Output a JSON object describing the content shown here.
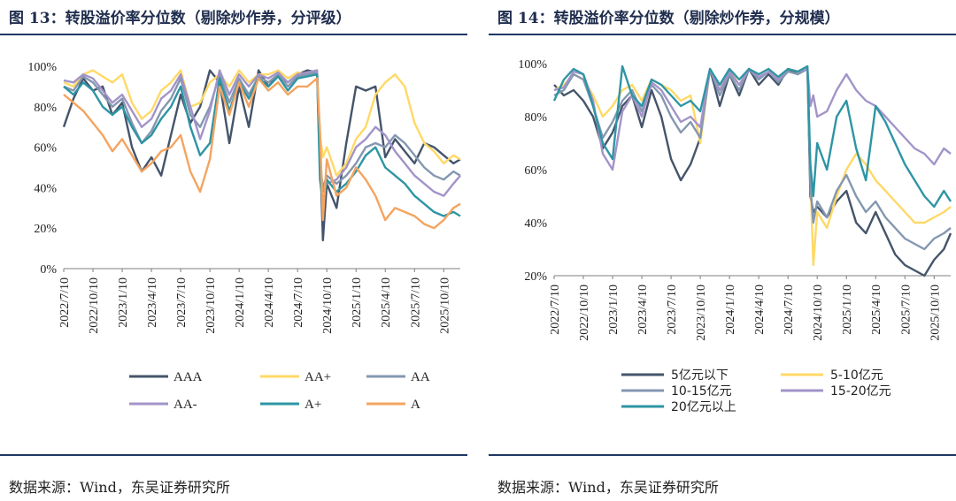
{
  "figures": [
    {
      "title": "图 13：转股溢价率分位数（剔除炒作券，分评级）",
      "source": "数据来源：Wind，东吴证券研究所"
    },
    {
      "title": "图 14：转股溢价率分位数（剔除炒作券，分规模）",
      "source": "数据来源：Wind，东吴证券研究所"
    }
  ],
  "chart_data": [
    {
      "type": "line",
      "title": "转股溢价率分位数（剔除炒作券，分评级）",
      "xlabel": "",
      "ylabel": "",
      "ylim": [
        0,
        100
      ],
      "y_ticks": [
        "0%",
        "20%",
        "40%",
        "60%",
        "80%",
        "100%"
      ],
      "x_ticks": [
        "2022/7/10",
        "2022/10/10",
        "2023/1/10",
        "2023/4/10",
        "2023/7/10",
        "2023/10/10",
        "2024/1/10",
        "2024/4/10",
        "2024/7/10",
        "2024/10/10",
        "2025/1/10",
        "2025/4/10",
        "2025/7/10",
        "2025/10/10"
      ],
      "x_tick_pos": [
        0,
        3,
        6,
        9,
        12,
        15,
        18,
        21,
        24,
        27,
        30,
        33,
        36,
        39
      ],
      "x_range": [
        0,
        40.7
      ],
      "legend": "bottom",
      "series": [
        {
          "name": "AAA",
          "color": "#44546a",
          "x": [
            0,
            1,
            2,
            3,
            4,
            5,
            6,
            7,
            8,
            9,
            10,
            11,
            12,
            13,
            14,
            15,
            16,
            17,
            18,
            19,
            20,
            21,
            22,
            23,
            24,
            25,
            26,
            26.3,
            26.6,
            27,
            28,
            29,
            30,
            31,
            32,
            33,
            34,
            35,
            36,
            37,
            38,
            39,
            40,
            40.7
          ],
          "values": [
            70,
            84,
            94,
            88,
            90,
            76,
            82,
            60,
            48,
            55,
            46,
            66,
            86,
            72,
            80,
            98,
            92,
            62,
            90,
            70,
            98,
            90,
            96,
            92,
            96,
            98,
            97,
            60,
            14,
            42,
            30,
            62,
            90,
            88,
            90,
            55,
            64,
            58,
            52,
            62,
            60,
            56,
            52,
            54
          ]
        },
        {
          "name": "AA+",
          "color": "#ffd966",
          "x": [
            0,
            1,
            2,
            3,
            4,
            5,
            6,
            7,
            8,
            9,
            10,
            11,
            12,
            13,
            14,
            15,
            16,
            17,
            18,
            19,
            20,
            21,
            22,
            23,
            24,
            25,
            26,
            26.3,
            26.6,
            27,
            28,
            29,
            30,
            31,
            32,
            33,
            34,
            35,
            36,
            37,
            38,
            39,
            40,
            40.7
          ],
          "values": [
            92,
            90,
            96,
            98,
            95,
            92,
            96,
            82,
            74,
            78,
            88,
            92,
            98,
            80,
            82,
            92,
            96,
            90,
            98,
            92,
            96,
            96,
            98,
            94,
            97,
            96,
            98,
            66,
            55,
            60,
            46,
            52,
            64,
            70,
            86,
            92,
            96,
            90,
            72,
            62,
            58,
            52,
            56,
            54
          ]
        },
        {
          "name": "AA",
          "color": "#8497b0",
          "x": [
            0,
            1,
            2,
            3,
            4,
            5,
            6,
            7,
            8,
            9,
            10,
            11,
            12,
            13,
            14,
            15,
            16,
            17,
            18,
            19,
            20,
            21,
            22,
            23,
            24,
            25,
            26,
            26.3,
            26.6,
            27,
            28,
            29,
            30,
            31,
            32,
            33,
            34,
            35,
            36,
            37,
            38,
            39,
            40,
            40.7
          ],
          "values": [
            90,
            88,
            95,
            92,
            86,
            80,
            84,
            72,
            62,
            68,
            78,
            84,
            94,
            76,
            70,
            80,
            96,
            82,
            94,
            86,
            95,
            92,
            96,
            90,
            95,
            96,
            97,
            50,
            40,
            46,
            42,
            46,
            52,
            60,
            62,
            60,
            66,
            62,
            56,
            50,
            46,
            44,
            48,
            46
          ]
        },
        {
          "name": "AA-",
          "color": "#a294c8",
          "x": [
            0,
            1,
            2,
            3,
            4,
            5,
            6,
            7,
            8,
            9,
            10,
            11,
            12,
            13,
            14,
            15,
            16,
            17,
            18,
            19,
            20,
            21,
            22,
            23,
            24,
            25,
            26,
            26.3,
            26.6,
            27,
            28,
            29,
            30,
            31,
            32,
            33,
            34,
            35,
            36,
            37,
            38,
            39,
            40,
            40.7
          ],
          "values": [
            93,
            92,
            96,
            94,
            88,
            82,
            86,
            78,
            70,
            74,
            84,
            88,
            96,
            80,
            64,
            78,
            98,
            86,
            96,
            90,
            96,
            94,
            97,
            92,
            96,
            97,
            98,
            55,
            38,
            42,
            44,
            50,
            60,
            64,
            70,
            66,
            58,
            52,
            46,
            42,
            38,
            36,
            42,
            46
          ]
        },
        {
          "name": "A+",
          "color": "#2e95a4",
          "x": [
            0,
            1,
            2,
            3,
            4,
            5,
            6,
            7,
            8,
            9,
            10,
            11,
            12,
            13,
            14,
            15,
            16,
            17,
            18,
            19,
            20,
            21,
            22,
            23,
            24,
            25,
            26,
            26.3,
            26.6,
            27,
            28,
            29,
            30,
            31,
            32,
            33,
            34,
            35,
            36,
            37,
            38,
            39,
            40,
            40.7
          ],
          "values": [
            90,
            86,
            92,
            88,
            80,
            76,
            80,
            70,
            62,
            66,
            74,
            80,
            90,
            70,
            56,
            62,
            94,
            78,
            92,
            84,
            94,
            90,
            95,
            88,
            94,
            95,
            96,
            44,
            32,
            44,
            38,
            42,
            48,
            56,
            60,
            50,
            46,
            42,
            36,
            32,
            28,
            26,
            28,
            26
          ]
        },
        {
          "name": "A",
          "color": "#f4a460",
          "x": [
            0,
            1,
            2,
            3,
            4,
            5,
            6,
            7,
            8,
            9,
            10,
            11,
            12,
            13,
            14,
            15,
            16,
            17,
            18,
            19,
            20,
            21,
            22,
            23,
            24,
            25,
            26,
            26.3,
            26.6,
            27,
            28,
            29,
            30,
            31,
            32,
            33,
            34,
            35,
            36,
            37,
            38,
            39,
            40,
            40.7
          ],
          "values": [
            86,
            82,
            78,
            72,
            66,
            58,
            64,
            56,
            48,
            52,
            58,
            60,
            66,
            48,
            38,
            54,
            90,
            76,
            92,
            80,
            94,
            88,
            92,
            86,
            90,
            90,
            94,
            68,
            24,
            54,
            36,
            40,
            50,
            44,
            36,
            24,
            30,
            28,
            26,
            22,
            20,
            24,
            30,
            32
          ]
        }
      ]
    },
    {
      "type": "line",
      "title": "转股溢价率分位数（剔除炒作券，分规模）",
      "xlabel": "",
      "ylabel": "",
      "ylim": [
        20,
        100
      ],
      "y_ticks": [
        "20%",
        "40%",
        "60%",
        "80%",
        "100%"
      ],
      "x_ticks": [
        "2022/7/10",
        "2022/10/10",
        "2023/1/10",
        "2023/4/10",
        "2023/7/10",
        "2023/10/10",
        "2024/1/10",
        "2024/4/10",
        "2024/7/10",
        "2024/10/10",
        "2025/1/10",
        "2025/4/10",
        "2025/7/10",
        "2025/10/10"
      ],
      "x_tick_pos": [
        0,
        3,
        6,
        9,
        12,
        15,
        18,
        21,
        24,
        27,
        30,
        33,
        36,
        39
      ],
      "x_range": [
        0,
        40.7
      ],
      "legend": "bottom",
      "series": [
        {
          "name": "5亿元以下",
          "color": "#44546a",
          "x": [
            0,
            1,
            2,
            3,
            4,
            5,
            6,
            7,
            8,
            9,
            10,
            11,
            12,
            13,
            14,
            15,
            16,
            17,
            18,
            19,
            20,
            21,
            22,
            23,
            24,
            25,
            26,
            26.3,
            26.6,
            27,
            28,
            29,
            30,
            31,
            32,
            33,
            34,
            35,
            36,
            37,
            38,
            39,
            40,
            40.7
          ],
          "values": [
            92,
            88,
            90,
            86,
            80,
            68,
            74,
            84,
            88,
            76,
            90,
            80,
            64,
            56,
            62,
            72,
            98,
            84,
            96,
            88,
            98,
            92,
            96,
            92,
            98,
            96,
            98,
            50,
            44,
            46,
            42,
            48,
            52,
            40,
            36,
            44,
            36,
            28,
            24,
            22,
            20,
            26,
            30,
            36
          ]
        },
        {
          "name": "5-10亿元",
          "color": "#ffd966",
          "x": [
            0,
            1,
            2,
            3,
            4,
            5,
            6,
            7,
            8,
            9,
            10,
            11,
            12,
            13,
            14,
            15,
            16,
            17,
            18,
            19,
            20,
            21,
            22,
            23,
            24,
            25,
            26,
            26.3,
            26.6,
            27,
            28,
            29,
            30,
            31,
            32,
            33,
            34,
            35,
            36,
            37,
            38,
            39,
            40,
            40.7
          ],
          "values": [
            90,
            92,
            96,
            94,
            88,
            80,
            84,
            90,
            92,
            86,
            94,
            92,
            90,
            86,
            88,
            70,
            98,
            90,
            98,
            92,
            98,
            96,
            98,
            94,
            98,
            97,
            98,
            58,
            24,
            44,
            38,
            50,
            60,
            66,
            62,
            56,
            52,
            48,
            44,
            40,
            40,
            42,
            44,
            46
          ]
        },
        {
          "name": "10-15亿元",
          "color": "#8497b0",
          "x": [
            0,
            1,
            2,
            3,
            4,
            5,
            6,
            7,
            8,
            9,
            10,
            11,
            12,
            13,
            14,
            15,
            16,
            17,
            18,
            19,
            20,
            21,
            22,
            23,
            24,
            25,
            26,
            26.3,
            26.6,
            27,
            28,
            29,
            30,
            31,
            32,
            33,
            34,
            35,
            36,
            37,
            38,
            39,
            40,
            40.7
          ],
          "values": [
            88,
            90,
            96,
            94,
            84,
            72,
            78,
            86,
            90,
            82,
            92,
            88,
            80,
            74,
            78,
            72,
            98,
            88,
            96,
            90,
            98,
            94,
            97,
            93,
            97,
            96,
            98,
            54,
            40,
            48,
            42,
            52,
            58,
            50,
            44,
            48,
            42,
            38,
            34,
            32,
            30,
            34,
            36,
            38
          ]
        },
        {
          "name": "15-20亿元",
          "color": "#a294c8",
          "x": [
            0,
            1,
            2,
            3,
            4,
            5,
            6,
            7,
            8,
            9,
            10,
            11,
            12,
            13,
            14,
            15,
            16,
            17,
            18,
            19,
            20,
            21,
            22,
            23,
            24,
            25,
            26,
            26.3,
            26.6,
            27,
            28,
            29,
            30,
            31,
            32,
            33,
            34,
            35,
            36,
            37,
            38,
            39,
            40,
            40.7
          ],
          "values": [
            90,
            91,
            97,
            96,
            86,
            66,
            60,
            82,
            88,
            80,
            93,
            90,
            84,
            78,
            80,
            76,
            98,
            90,
            97,
            92,
            98,
            95,
            97,
            94,
            98,
            97,
            98,
            84,
            88,
            80,
            82,
            90,
            96,
            90,
            86,
            84,
            80,
            76,
            72,
            68,
            66,
            62,
            68,
            66
          ]
        },
        {
          "name": "20亿元以上",
          "color": "#2e95a4",
          "x": [
            0,
            1,
            2,
            3,
            4,
            5,
            6,
            7,
            8,
            9,
            10,
            11,
            12,
            13,
            14,
            15,
            16,
            17,
            18,
            19,
            20,
            21,
            22,
            23,
            24,
            25,
            26,
            26.3,
            26.6,
            27,
            28,
            29,
            30,
            31,
            32,
            33,
            34,
            35,
            36,
            37,
            38,
            39,
            40,
            40.7
          ],
          "values": [
            86,
            94,
            98,
            96,
            84,
            70,
            64,
            99,
            88,
            84,
            94,
            92,
            88,
            84,
            86,
            82,
            98,
            92,
            98,
            94,
            98,
            96,
            98,
            95,
            98,
            97,
            99,
            62,
            50,
            70,
            60,
            80,
            86,
            68,
            56,
            84,
            78,
            70,
            62,
            56,
            50,
            46,
            52,
            48
          ]
        }
      ]
    }
  ]
}
